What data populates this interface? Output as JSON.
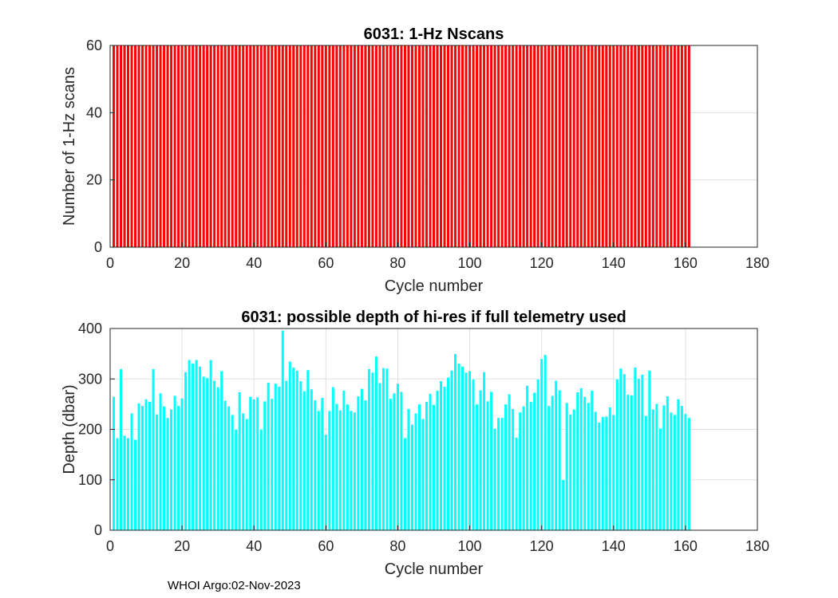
{
  "chart_data": [
    {
      "type": "bar",
      "title": "6031: 1-Hz Nscans",
      "xlabel": "Cycle number",
      "ylabel": "Number of 1-Hz scans",
      "xlim": [
        0,
        180
      ],
      "ylim": [
        0,
        60
      ],
      "xticks": [
        "0",
        "20",
        "40",
        "60",
        "80",
        "100",
        "120",
        "140",
        "160",
        "180"
      ],
      "yticks": [
        "0",
        "20",
        "40",
        "60"
      ],
      "grid": true,
      "bar_color": "#ff0000",
      "bar_edge_color": "#ffffff",
      "x_start": 1,
      "x_end": 161,
      "constant_value": 60
    },
    {
      "type": "bar",
      "title": "6031: possible depth of hi-res if full telemetry used",
      "xlabel": "Cycle number",
      "ylabel": "Depth (dbar)",
      "xlim": [
        0,
        180
      ],
      "ylim": [
        0,
        400
      ],
      "xticks": [
        "0",
        "20",
        "40",
        "60",
        "80",
        "100",
        "120",
        "140",
        "160",
        "180"
      ],
      "yticks": [
        "0",
        "100",
        "200",
        "300",
        "400"
      ],
      "grid": true,
      "bar_color": "#00ffff",
      "bar_edge_color": "#ffffff",
      "x_start": 1,
      "values": [
        265,
        183,
        320,
        188,
        183,
        232,
        180,
        252,
        247,
        260,
        255,
        320,
        230,
        272,
        246,
        223,
        240,
        267,
        247,
        262,
        314,
        338,
        331,
        338,
        325,
        305,
        302,
        338,
        297,
        284,
        316,
        257,
        246,
        229,
        200,
        274,
        232,
        221,
        265,
        260,
        264,
        200,
        256,
        293,
        261,
        291,
        285,
        396,
        297,
        335,
        323,
        317,
        296,
        276,
        318,
        280,
        258,
        237,
        263,
        190,
        237,
        284,
        251,
        238,
        277,
        250,
        237,
        234,
        266,
        281,
        258,
        320,
        313,
        345,
        292,
        322,
        321,
        261,
        272,
        291,
        275,
        183,
        241,
        210,
        232,
        250,
        221,
        255,
        271,
        249,
        277,
        296,
        285,
        303,
        317,
        350,
        331,
        325,
        313,
        316,
        300,
        250,
        278,
        314,
        256,
        275,
        202,
        223,
        223,
        250,
        270,
        241,
        184,
        234,
        246,
        287,
        255,
        273,
        300,
        340,
        348,
        247,
        267,
        297,
        278,
        100,
        253,
        230,
        240,
        274,
        282,
        265,
        253,
        277,
        235,
        214,
        225,
        226,
        244,
        229,
        300,
        321,
        310,
        269,
        268,
        323,
        301,
        309,
        227,
        317,
        240,
        251,
        202,
        248,
        266,
        234,
        229,
        260,
        247,
        231,
        223
      ]
    }
  ],
  "footer": "WHOI Argo:02-Nov-2023"
}
